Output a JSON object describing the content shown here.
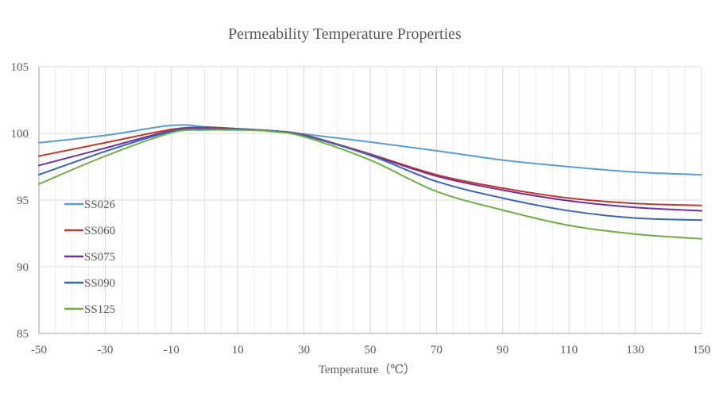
{
  "chart_data": {
    "type": "line",
    "title": "Permeability Temperature Properties",
    "xlabel": "Temperature（℃）",
    "ylabel": "",
    "xlim": [
      -50,
      150
    ],
    "ylim": [
      85,
      105
    ],
    "x_ticks": [
      -50,
      -30,
      -10,
      10,
      30,
      50,
      70,
      90,
      110,
      130,
      150
    ],
    "y_ticks": [
      85,
      90,
      95,
      100,
      105
    ],
    "x_minor_grid_step": 5,
    "grid": true,
    "legend_position": "left-inside",
    "x": [
      -50,
      -30,
      -10,
      0,
      10,
      20,
      30,
      50,
      70,
      90,
      110,
      130,
      150
    ],
    "series": [
      {
        "name": "SS026",
        "color": "#5b9bd5",
        "values": [
          99.3,
          99.85,
          100.6,
          100.5,
          100.35,
          100.2,
          99.95,
          99.35,
          98.7,
          98.0,
          97.5,
          97.1,
          96.9
        ]
      },
      {
        "name": "SS060",
        "color": "#c0392b",
        "values": [
          98.3,
          99.3,
          100.3,
          100.45,
          100.35,
          100.2,
          99.9,
          98.45,
          96.9,
          95.9,
          95.15,
          94.75,
          94.6
        ]
      },
      {
        "name": "SS075",
        "color": "#7030a0",
        "values": [
          97.6,
          98.9,
          100.2,
          100.4,
          100.3,
          100.2,
          99.85,
          98.4,
          96.8,
          95.75,
          94.95,
          94.45,
          94.2
        ]
      },
      {
        "name": "SS090",
        "color": "#3a64b4",
        "values": [
          96.9,
          98.65,
          100.15,
          100.35,
          100.3,
          100.2,
          99.85,
          98.35,
          96.4,
          95.15,
          94.2,
          93.65,
          93.5
        ]
      },
      {
        "name": "SS125",
        "color": "#70ad47",
        "values": [
          96.2,
          98.3,
          100.05,
          100.25,
          100.25,
          100.15,
          99.75,
          98.0,
          95.65,
          94.25,
          93.1,
          92.45,
          92.1
        ]
      }
    ]
  }
}
